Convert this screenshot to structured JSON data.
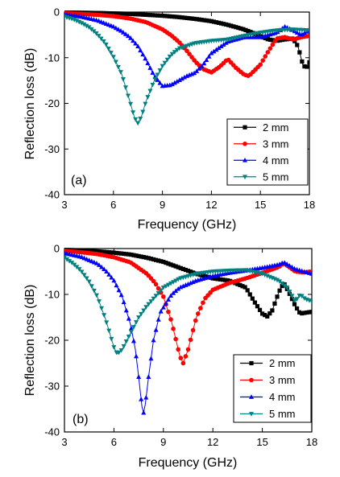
{
  "chart_data": [
    {
      "type": "line",
      "panel_label": "(a)",
      "xlabel": "Frequency (GHz)",
      "ylabel": "Reflection loss (dB)",
      "xlim": [
        3,
        18
      ],
      "ylim": [
        -40,
        0
      ],
      "xticks": [
        3,
        6,
        9,
        12,
        15,
        18
      ],
      "yticks": [
        0,
        -10,
        -20,
        -30,
        -40
      ],
      "x_tick_labels": [
        "3",
        "6",
        "9",
        "12",
        "15",
        "18"
      ],
      "y_tick_labels": [
        "0",
        "-10",
        "-20",
        "-30",
        "-40"
      ],
      "grid": false,
      "legend_position": "bottom-right",
      "series": [
        {
          "name": "2 mm",
          "color": "#000000",
          "marker": "square",
          "x": [
            3,
            4,
            5,
            6,
            7,
            8,
            9,
            10,
            11,
            12,
            13,
            14,
            14.5,
            15,
            15.5,
            16,
            16.5,
            17,
            17.3,
            17.6,
            17.8,
            18
          ],
          "y": [
            -0.1,
            -0.15,
            -0.2,
            -0.3,
            -0.4,
            -0.6,
            -0.8,
            -1.1,
            -1.5,
            -2.0,
            -2.8,
            -3.8,
            -4.5,
            -5.3,
            -6.0,
            -6.3,
            -6.0,
            -5.8,
            -7.5,
            -11.5,
            -12.3,
            -11
          ]
        },
        {
          "name": "3 mm",
          "color": "#ff0000",
          "marker": "circle",
          "x": [
            3,
            4,
            5,
            6,
            7,
            8,
            9,
            9.5,
            10,
            10.5,
            11,
            11.5,
            12,
            12.5,
            13,
            13.5,
            14,
            14.3,
            15,
            15.5,
            16,
            16.5,
            17,
            17.5,
            18
          ],
          "y": [
            -0.2,
            -0.4,
            -0.6,
            -0.9,
            -1.4,
            -2.2,
            -3.8,
            -5.0,
            -6.5,
            -8.5,
            -10.8,
            -12.5,
            -13.2,
            -12.0,
            -10.3,
            -12.2,
            -13.7,
            -14.0,
            -11.5,
            -8.5,
            -5.8,
            -5.5,
            -6.0,
            -5.5,
            -5.2
          ]
        },
        {
          "name": "4 mm",
          "color": "#0000ff",
          "marker": "triangle-up",
          "x": [
            3,
            4,
            5,
            6,
            6.5,
            7,
            7.5,
            8,
            8.5,
            9,
            9.5,
            10,
            10.5,
            11,
            11.5,
            12,
            13,
            14,
            15,
            16,
            16.5,
            17,
            17.5,
            18
          ],
          "y": [
            -0.5,
            -1.0,
            -1.8,
            -3.2,
            -4.2,
            -5.5,
            -7.5,
            -10.5,
            -14.0,
            -16.2,
            -16.0,
            -15.0,
            -14.0,
            -13.3,
            -11.5,
            -9.0,
            -6.5,
            -5.5,
            -5.5,
            -4.5,
            -3.2,
            -4.0,
            -5.0,
            -4.0
          ]
        },
        {
          "name": "5 mm",
          "color": "#008080",
          "marker": "triangle-down",
          "x": [
            3,
            3.5,
            4,
            4.5,
            5,
            5.5,
            6,
            6.5,
            7,
            7.3,
            7.5,
            7.7,
            8,
            8.5,
            9,
            9.5,
            10,
            11,
            12,
            13,
            14,
            15,
            16,
            17,
            18
          ],
          "y": [
            -1.0,
            -1.5,
            -2.3,
            -3.3,
            -4.8,
            -6.8,
            -9.8,
            -13.5,
            -19.5,
            -23.2,
            -24.3,
            -23.0,
            -19.5,
            -15.0,
            -11.8,
            -9.5,
            -8.0,
            -6.8,
            -6.3,
            -6.0,
            -5.2,
            -4.5,
            -4.0,
            -3.8,
            -4.0
          ]
        }
      ]
    },
    {
      "type": "line",
      "panel_label": "(b)",
      "xlabel": "Frequency (GHz)",
      "ylabel": "Reflection loss (dB)",
      "xlim": [
        3,
        18
      ],
      "ylim": [
        -40,
        0
      ],
      "xticks": [
        3,
        6,
        9,
        12,
        15,
        18
      ],
      "yticks": [
        0,
        -10,
        -20,
        -30,
        -40
      ],
      "x_tick_labels": [
        "3",
        "6",
        "9",
        "12",
        "15",
        "18"
      ],
      "y_tick_labels": [
        "0",
        "-10",
        "-20",
        "-30",
        "-40"
      ],
      "grid": false,
      "legend_position": "bottom-right",
      "series": [
        {
          "name": "2 mm",
          "color": "#000000",
          "marker": "square",
          "x": [
            3,
            4,
            5,
            6,
            7,
            8,
            9,
            10,
            11,
            12,
            13,
            14,
            14.5,
            15,
            15.3,
            15.6,
            16,
            16.3,
            16.6,
            17,
            17.3,
            17.6,
            18
          ],
          "y": [
            -0.3,
            -0.4,
            -0.6,
            -0.9,
            -1.3,
            -2.0,
            -2.9,
            -4.2,
            -5.5,
            -6.5,
            -7.0,
            -8.5,
            -11.5,
            -14.2,
            -14.8,
            -13.5,
            -9.5,
            -7.5,
            -9.5,
            -12.5,
            -14.2,
            -14.0,
            -13.8
          ]
        },
        {
          "name": "3 mm",
          "color": "#ff0000",
          "marker": "circle",
          "x": [
            3,
            4,
            5,
            6,
            7,
            8,
            8.5,
            9,
            9.5,
            10,
            10.2,
            10.5,
            11,
            11.5,
            12,
            13,
            14,
            15,
            16,
            16.3,
            17,
            17.5,
            18
          ],
          "y": [
            -0.5,
            -0.8,
            -1.2,
            -1.9,
            -3.0,
            -5.5,
            -7.5,
            -10.5,
            -16.0,
            -23.5,
            -25.0,
            -22.0,
            -15.0,
            -11.0,
            -9.0,
            -7.5,
            -6.5,
            -5.3,
            -4.0,
            -3.2,
            -5.0,
            -5.2,
            -5.0
          ]
        },
        {
          "name": "4 mm",
          "color": "#0000ff",
          "marker": "triangle-up",
          "x": [
            3,
            4,
            5,
            5.5,
            6,
            6.5,
            7,
            7.3,
            7.5,
            7.7,
            7.8,
            7.9,
            8.1,
            8.4,
            8.8,
            9.5,
            10,
            11,
            12,
            13,
            14,
            15,
            16,
            16.3,
            17,
            18
          ],
          "y": [
            -1.0,
            -1.8,
            -3.3,
            -4.8,
            -7.0,
            -10.5,
            -16.5,
            -22.0,
            -28.0,
            -34.5,
            -35.8,
            -34.0,
            -28.0,
            -20.0,
            -14.0,
            -10.0,
            -8.5,
            -7.0,
            -6.0,
            -5.3,
            -4.8,
            -4.2,
            -3.5,
            -3.0,
            -4.5,
            -5.5
          ]
        },
        {
          "name": "5 mm",
          "color": "#008080",
          "marker": "triangle-down",
          "x": [
            3,
            3.5,
            4,
            4.5,
            5,
            5.5,
            6,
            6.2,
            6.5,
            7,
            7.5,
            8,
            9,
            10,
            11,
            12,
            13,
            14,
            15,
            16,
            16.5,
            17,
            17.3,
            17.6,
            18
          ],
          "y": [
            -2.0,
            -3.2,
            -4.8,
            -7.2,
            -10.5,
            -15.5,
            -21.5,
            -23.0,
            -22.0,
            -18.5,
            -15.0,
            -12.5,
            -8.5,
            -6.5,
            -5.5,
            -5.0,
            -4.8,
            -4.7,
            -5.5,
            -7.0,
            -8.5,
            -11.5,
            -10.0,
            -11.0,
            -11.5
          ]
        }
      ]
    }
  ]
}
